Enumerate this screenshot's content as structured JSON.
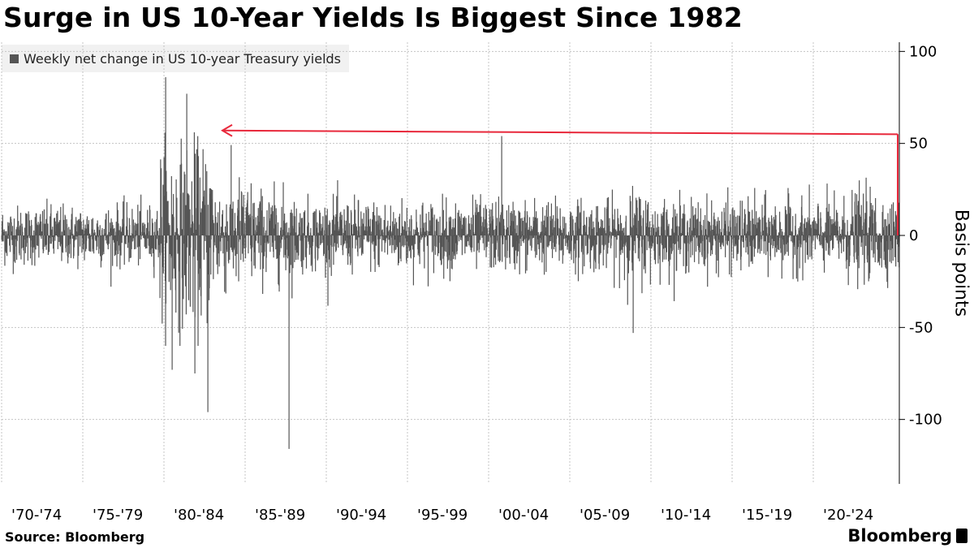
{
  "title": "Surge in US 10-Year Yields Is Biggest Since 1982",
  "source": "Source: Bloomberg",
  "brand": "Bloomberg",
  "brand_icon": "bloomberg-terminal-icon",
  "chart_data": {
    "type": "bar",
    "title": "Surge in US 10-Year Yields Is Biggest Since 1982",
    "legend": [
      "Weekly net change in US 10-year Treasury yields"
    ],
    "legend_position": "top-left",
    "ylabel": "Basis points",
    "xlabel": "",
    "ylim": [
      -135,
      105
    ],
    "yticks": [
      100,
      50,
      0,
      -50,
      -100
    ],
    "ytick_labels": [
      "100",
      "50",
      "0",
      "-50",
      "-100"
    ],
    "y_axis_side": "right",
    "grid": true,
    "x_range": [
      1970,
      2025.3
    ],
    "xticks": [
      1970,
      1975,
      1980,
      1985,
      1990,
      1995,
      2000,
      2005,
      2010,
      2015,
      2020
    ],
    "categories": [
      "'70-'74",
      "'75-'79",
      "'80-'84",
      "'85-'89",
      "'90-'94",
      "'95-'99",
      "'00-'04",
      "'05-'09",
      "'10-'14",
      "'15-'19",
      "'20-'24"
    ],
    "bar_color": "#555555",
    "highlighted_points": [
      {
        "x": 1980.1,
        "y": 86
      },
      {
        "x": 1980.5,
        "y": -73
      },
      {
        "x": 1981.4,
        "y": 77
      },
      {
        "x": 1981.9,
        "y": -75
      },
      {
        "x": 1982.7,
        "y": -96
      },
      {
        "x": 1987.7,
        "y": -116
      },
      {
        "x": 2000.8,
        "y": 54
      },
      {
        "x": 2008.9,
        "y": -53
      },
      {
        "x": 2025.2,
        "y": 55
      }
    ],
    "annotation": {
      "type": "arrow",
      "color": "#e8283b",
      "from": {
        "x": 2025.2,
        "y": 55
      },
      "to": {
        "x": 1983.6,
        "y": 57
      }
    }
  }
}
